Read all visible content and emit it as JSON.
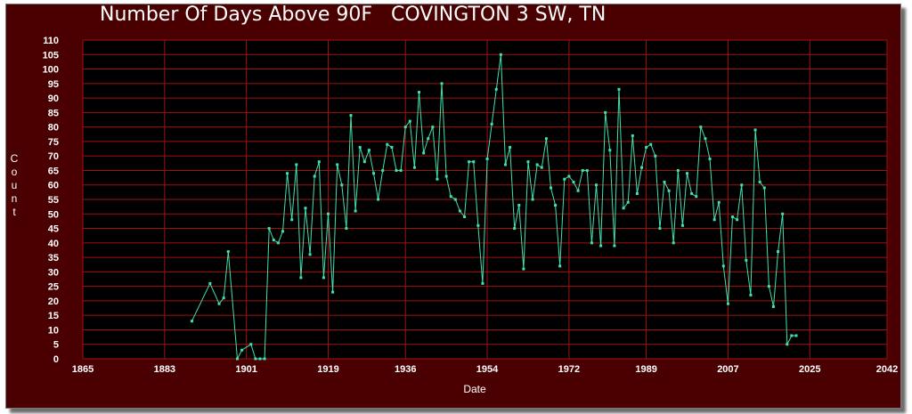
{
  "chart_data": {
    "type": "line",
    "title": "Number Of Days Above 90F   COVINGTON 3 SW, TN",
    "xlabel": "Date",
    "ylabel": "Count",
    "xlim": [
      1865,
      2042
    ],
    "ylim": [
      0,
      110
    ],
    "x_ticks": [
      "1865",
      "1883",
      "1901",
      "1919",
      "1936",
      "1954",
      "1972",
      "1989",
      "2007",
      "2025",
      "2042"
    ],
    "y_ticks": [
      "0",
      "5",
      "10",
      "15",
      "20",
      "25",
      "30",
      "35",
      "40",
      "45",
      "50",
      "55",
      "60",
      "65",
      "70",
      "75",
      "80",
      "85",
      "90",
      "95",
      "100",
      "105",
      "110"
    ],
    "grid": true,
    "colors": {
      "background": "#4a0000",
      "plot": "#000000",
      "grid": "#a01010",
      "line": "#40e0b0",
      "text": "#ffffff"
    },
    "series": [
      {
        "x": [
          1889,
          1893,
          1895,
          1896,
          1897,
          1899,
          1900,
          1902,
          1903,
          1904,
          1905,
          1906,
          1907,
          1908,
          1909,
          1910,
          1911,
          1912,
          1913,
          1914,
          1915,
          1916,
          1917,
          1918,
          1919,
          1920,
          1921,
          1922,
          1923,
          1924,
          1925,
          1926,
          1927,
          1928,
          1929,
          1930,
          1931,
          1932,
          1933,
          1934,
          1935,
          1936,
          1937,
          1938,
          1939,
          1940,
          1941,
          1942,
          1943,
          1944,
          1945,
          1946,
          1947,
          1948,
          1949,
          1950,
          1951,
          1952,
          1953,
          1954,
          1955,
          1956,
          1957,
          1958,
          1959,
          1960,
          1961,
          1962,
          1963,
          1964,
          1965,
          1966,
          1967,
          1968,
          1969,
          1970,
          1971,
          1972,
          1973,
          1974,
          1975,
          1976,
          1977,
          1978,
          1979,
          1980,
          1981,
          1982,
          1983,
          1984,
          1985,
          1986,
          1987,
          1988,
          1989,
          1990,
          1991,
          1992,
          1993,
          1994,
          1995,
          1996,
          1997,
          1998,
          1999,
          2000,
          2001,
          2002,
          2003,
          2004,
          2005,
          2006,
          2007,
          2008,
          2009,
          2010,
          2011,
          2012,
          2013,
          2014,
          2015,
          2016,
          2017,
          2018,
          2019,
          2020,
          2021,
          2022
        ],
        "y": [
          13,
          26,
          19,
          21,
          37,
          0,
          3,
          5,
          0,
          0,
          0,
          45,
          41,
          40,
          44,
          64,
          48,
          67,
          28,
          52,
          36,
          63,
          68,
          28,
          50,
          23,
          67,
          60,
          45,
          84,
          51,
          73,
          68,
          72,
          64,
          55,
          65,
          74,
          73,
          65,
          65,
          80,
          82,
          66,
          92,
          71,
          76,
          80,
          62,
          95,
          63,
          56,
          55,
          51,
          49,
          68,
          68,
          46,
          26,
          69,
          81,
          93,
          105,
          67,
          73,
          45,
          53,
          31,
          68,
          55,
          67,
          66,
          76,
          59,
          53,
          32,
          62,
          63,
          61,
          58,
          65,
          65,
          40,
          60,
          39,
          85,
          72,
          39,
          93,
          52,
          54,
          77,
          57,
          66,
          73,
          74,
          70,
          45,
          61,
          58,
          40,
          65,
          46,
          64,
          57,
          56,
          80,
          76,
          69,
          48,
          54,
          32,
          19,
          49,
          48,
          60,
          34,
          22,
          79,
          61,
          59,
          25,
          18,
          37,
          50,
          5,
          8,
          8
        ]
      }
    ]
  }
}
